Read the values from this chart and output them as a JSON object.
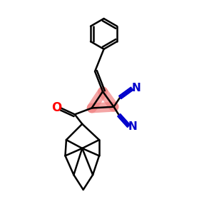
{
  "bg_color": "#ffffff",
  "bond_color": "#000000",
  "highlight_color": "#f08080",
  "cn_color": "#0000cc",
  "o_color": "#ff0000",
  "line_width": 1.8,
  "highlight_lw": 10,
  "figsize": [
    3.0,
    3.0
  ],
  "dpi": 100,
  "xlim": [
    0,
    10
  ],
  "ylim": [
    0,
    10
  ]
}
